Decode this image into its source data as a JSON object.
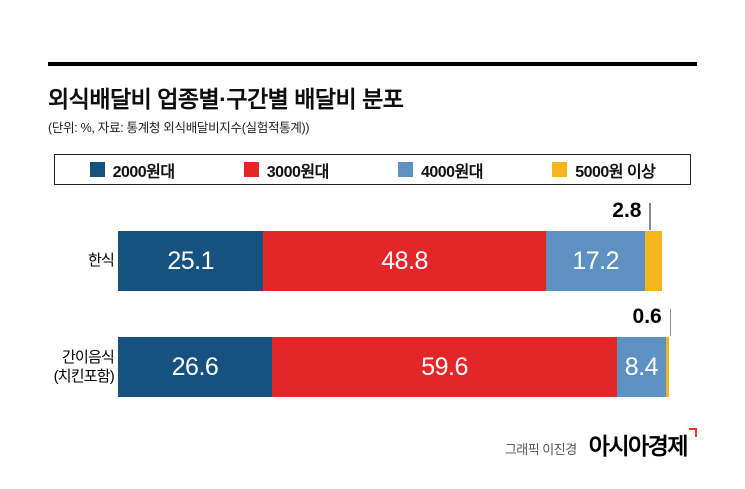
{
  "header": {
    "title": "외식배달비 업종별·구간별 배달비 분포",
    "subtitle": "(단위: %, 자료: 통계청 외식배달비지수(실험적통계))"
  },
  "footer": {
    "credit": "그래픽 이진경",
    "brand": "아시아경제",
    "brand_mark_icon": "asiae-red-mark"
  },
  "chart_data": {
    "type": "bar",
    "orientation": "horizontal",
    "stacked": true,
    "title": "외식배달비 업종별·구간별 배달비 분포",
    "unit_note": "(단위: %, 자료: 통계청 외식배달비지수(실험적통계))",
    "value_unit": "%",
    "categories": [
      "한식",
      "간이음식\n(치킨포함)"
    ],
    "series": [
      {
        "name": "2000원대",
        "color": "#15527f",
        "values": [
          25.1,
          26.6
        ]
      },
      {
        "name": "3000원대",
        "color": "#e52629",
        "values": [
          48.8,
          59.6
        ]
      },
      {
        "name": "4000원대",
        "color": "#5d91c2",
        "values": [
          17.2,
          8.4
        ]
      },
      {
        "name": "5000원 이상",
        "color": "#f6b51d",
        "values": [
          2.8,
          0.6
        ]
      }
    ],
    "outside_labeled_series": "5000원 이상",
    "xlim": [
      0,
      100
    ],
    "legend_position": "top",
    "grid": false
  }
}
